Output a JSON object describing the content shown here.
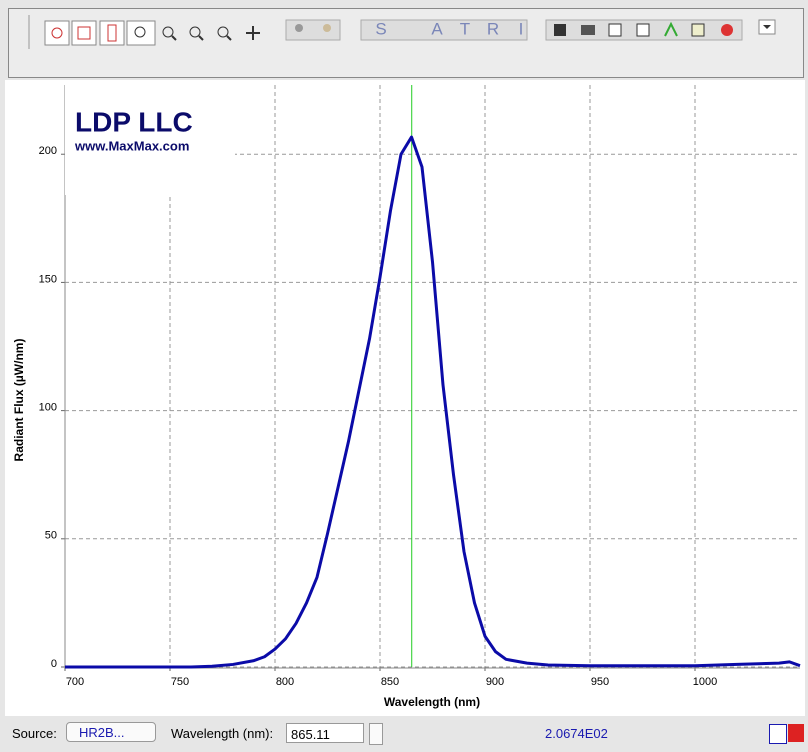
{
  "toolbar": {
    "letters": [
      "S",
      "A",
      "T",
      "R",
      "I"
    ]
  },
  "chart_data": {
    "type": "line",
    "logo": {
      "title": "LDP LLC",
      "subtitle": "www.MaxMax.com"
    },
    "xlabel": "Wavelength (nm)",
    "ylabel": "Radiant Flux (µW/nm)",
    "x": [
      700,
      720,
      740,
      760,
      770,
      780,
      790,
      795,
      800,
      805,
      810,
      815,
      820,
      825,
      830,
      835,
      840,
      845,
      850,
      855,
      860,
      865,
      870,
      875,
      880,
      885,
      890,
      895,
      900,
      905,
      910,
      920,
      930,
      950,
      1000,
      1020,
      1040,
      1045,
      1050
    ],
    "series": [
      {
        "name": "Spectrum",
        "color": "#0b0ba8",
        "values": [
          0,
          0,
          0,
          0,
          0.3,
          1,
          2.5,
          4,
          7,
          11,
          17,
          25,
          35,
          52,
          70,
          88,
          108,
          128,
          152,
          178,
          200,
          206.7,
          195,
          158,
          110,
          75,
          45,
          25,
          12,
          6,
          3,
          1.5,
          0.8,
          0.5,
          0.5,
          1,
          1.5,
          2,
          0.5
        ]
      }
    ],
    "cursor_color": "#22cc22",
    "xlim": [
      700,
      1050
    ],
    "ylim": [
      0,
      227
    ],
    "xticks": [
      700,
      750,
      800,
      850,
      900,
      950,
      1000
    ],
    "yticks": [
      0,
      50,
      100,
      150,
      200
    ],
    "grid": true
  },
  "status": {
    "source_label": "Source:",
    "source": "HR2B...",
    "wavelength_label": "Wavelength (nm):",
    "wavelength": 865.11,
    "reading": "2.0674E02"
  }
}
